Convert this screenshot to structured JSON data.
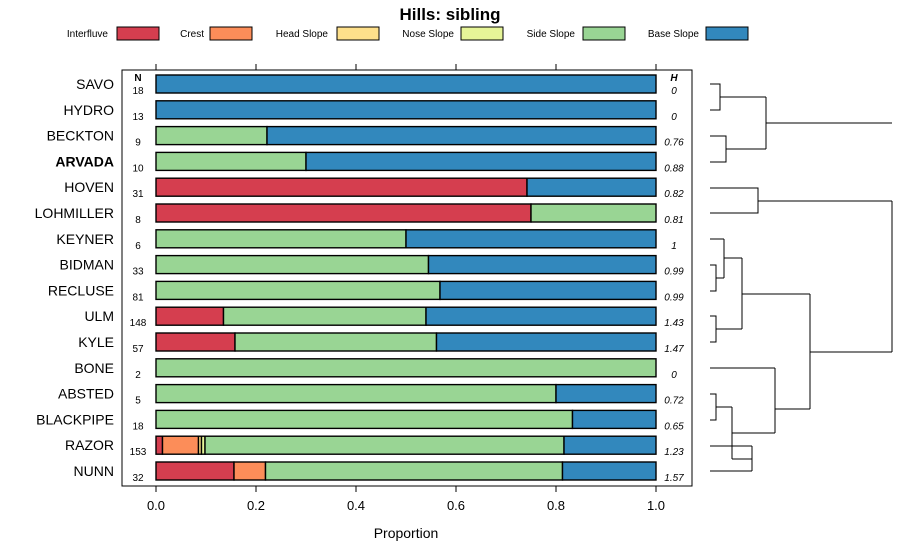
{
  "chart_data": {
    "type": "bar",
    "stacked": true,
    "orientation": "horizontal",
    "title": "Hills: sibling",
    "xlabel": "Proportion",
    "xlim": [
      0,
      1
    ],
    "xticks": [
      "0.0",
      "0.2",
      "0.4",
      "0.6",
      "0.8",
      "1.0"
    ],
    "n_header": "N",
    "h_header": "H",
    "legend": [
      {
        "name": "Interfluve",
        "color": "#D53E4F"
      },
      {
        "name": "Crest",
        "color": "#FC8D59"
      },
      {
        "name": "Head Slope",
        "color": "#FEE08B"
      },
      {
        "name": "Nose Slope",
        "color": "#E6F598"
      },
      {
        "name": "Side Slope",
        "color": "#99D594"
      },
      {
        "name": "Base Slope",
        "color": "#3288BD"
      }
    ],
    "series_names": [
      "Interfluve",
      "Crest",
      "Head Slope",
      "Nose Slope",
      "Side Slope",
      "Base Slope"
    ],
    "rows": [
      {
        "name": "SAVO",
        "n": "18",
        "h": "0",
        "bold": false,
        "values": [
          0,
          0,
          0,
          0,
          0,
          1.0
        ]
      },
      {
        "name": "HYDRO",
        "n": "13",
        "h": "0",
        "bold": false,
        "values": [
          0,
          0,
          0,
          0,
          0,
          1.0
        ]
      },
      {
        "name": "BECKTON",
        "n": "9",
        "h": "0.76",
        "bold": false,
        "values": [
          0,
          0,
          0,
          0,
          0.222,
          0.778
        ]
      },
      {
        "name": "ARVADA",
        "n": "10",
        "h": "0.88",
        "bold": true,
        "values": [
          0,
          0,
          0,
          0,
          0.3,
          0.7
        ]
      },
      {
        "name": "HOVEN",
        "n": "31",
        "h": "0.82",
        "bold": false,
        "values": [
          0.742,
          0,
          0,
          0,
          0,
          0.258
        ]
      },
      {
        "name": "LOHMILLER",
        "n": "8",
        "h": "0.81",
        "bold": false,
        "values": [
          0.75,
          0,
          0,
          0,
          0.25,
          0
        ]
      },
      {
        "name": "KEYNER",
        "n": "6",
        "h": "1",
        "bold": false,
        "values": [
          0,
          0,
          0,
          0,
          0.5,
          0.5
        ]
      },
      {
        "name": "BIDMAN",
        "n": "33",
        "h": "0.99",
        "bold": false,
        "values": [
          0,
          0,
          0,
          0,
          0.545,
          0.455
        ]
      },
      {
        "name": "RECLUSE",
        "n": "81",
        "h": "0.99",
        "bold": false,
        "values": [
          0,
          0,
          0,
          0,
          0.568,
          0.432
        ]
      },
      {
        "name": "ULM",
        "n": "148",
        "h": "1.43",
        "bold": false,
        "values": [
          0.135,
          0,
          0,
          0,
          0.405,
          0.46
        ]
      },
      {
        "name": "KYLE",
        "n": "57",
        "h": "1.47",
        "bold": false,
        "values": [
          0.158,
          0,
          0,
          0,
          0.403,
          0.439
        ]
      },
      {
        "name": "BONE",
        "n": "2",
        "h": "0",
        "bold": false,
        "values": [
          0,
          0,
          0,
          0,
          1.0,
          0
        ]
      },
      {
        "name": "ABSTED",
        "n": "5",
        "h": "0.72",
        "bold": false,
        "values": [
          0,
          0,
          0,
          0,
          0.8,
          0.2
        ]
      },
      {
        "name": "BLACKPIPE",
        "n": "18",
        "h": "0.65",
        "bold": false,
        "values": [
          0,
          0,
          0,
          0,
          0.833,
          0.167
        ]
      },
      {
        "name": "RAZOR",
        "n": "153",
        "h": "1.23",
        "bold": false,
        "values": [
          0.013,
          0.072,
          0.006,
          0.007,
          0.718,
          0.184
        ]
      },
      {
        "name": "NUNN",
        "n": "32",
        "h": "1.57",
        "bold": false,
        "values": [
          0.156,
          0.063,
          0,
          0,
          0.594,
          0.187
        ]
      }
    ]
  }
}
